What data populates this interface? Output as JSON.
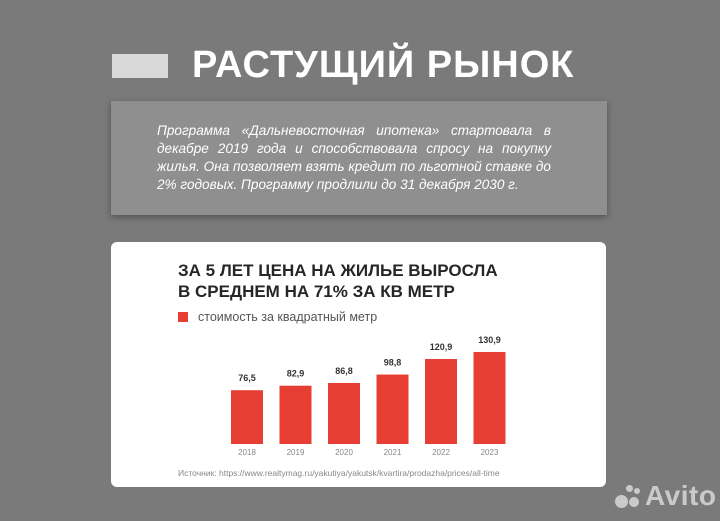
{
  "header": {
    "title": "РАСТУЩИЙ РЫНОК"
  },
  "intro": {
    "text": "Программа «Дальневосточная ипотека» стартовала в декабре 2019 года и способствовала спросу на покупку жилья. Она позволяет взять кредит по льготной ставке до 2% годовых. Программу продлили до 31 декабря 2030 г."
  },
  "chart_data": {
    "type": "bar",
    "title": "ЗА 5 ЛЕТ ЦЕНА НА ЖИЛЬЕ ВЫРОСЛА В СРЕДНЕМ НА 71% ЗА КВ МЕТР",
    "title_lines": [
      "ЗА 5 ЛЕТ ЦЕНА НА ЖИЛЬЕ ВЫРОСЛА",
      "В СРЕДНЕМ НА 71% ЗА КВ МЕТР"
    ],
    "categories": [
      "2018",
      "2019",
      "2020",
      "2021",
      "2022",
      "2023"
    ],
    "series": [
      {
        "name": "стоимость за квадратный метр",
        "values": [
          76.5,
          82.9,
          86.8,
          98.8,
          120.9,
          130.9
        ]
      }
    ],
    "value_labels": [
      "76,5",
      "82,9",
      "86,8",
      "98,8",
      "120,9",
      "130,9"
    ],
    "xlabel": "",
    "ylabel": "",
    "legend_position": "top-left",
    "grid": false,
    "bar_color": "#e63e32",
    "source": "Источник: https://www.realtymag.ru/yakutiya/yakutsk/kvartira/prodazha/prices/all-time"
  },
  "watermark": {
    "brand": "Avito"
  }
}
